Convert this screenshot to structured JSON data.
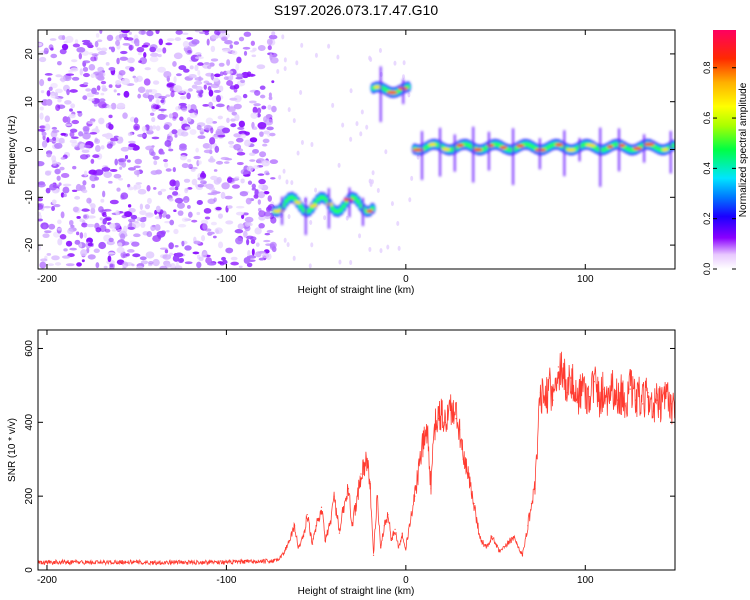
{
  "chart_data": [
    {
      "type": "heatmap",
      "title": "S197.2026.073.17.47.G10",
      "xlabel": "Height of straight line (km)",
      "ylabel": "Frequency (Hz)",
      "xlim": [
        -205,
        150
      ],
      "ylim": [
        -25,
        25
      ],
      "xticks": [
        -200,
        -100,
        0,
        100
      ],
      "yticks": [
        -20,
        -10,
        0,
        10,
        20
      ],
      "colorbar": {
        "label": "Normalized spectral amplitude",
        "range": [
          0,
          0.95
        ],
        "ticks": [
          0.0,
          0.2,
          0.4,
          0.6,
          0.8
        ]
      },
      "features": [
        {
          "name": "noise region",
          "x_range": [
            -205,
            -73
          ],
          "frequency_range": [
            -25,
            25
          ],
          "amplitude": "low"
        },
        {
          "name": "trace segment 1",
          "x_range": [
            -73,
            -18
          ],
          "frequency": -11.5,
          "amplitude": "high"
        },
        {
          "name": "trace segment 2",
          "x_range": [
            -18,
            2
          ],
          "frequency": 12.5,
          "amplitude": "high"
        },
        {
          "name": "trace segment 3",
          "x_range": [
            5,
            150
          ],
          "frequency": 0.5,
          "amplitude": "high"
        }
      ]
    },
    {
      "type": "line",
      "xlabel": "Height of straight line (km)",
      "ylabel": "SNR (10 * v/v)",
      "xlim": [
        -205,
        150
      ],
      "ylim": [
        0,
        650
      ],
      "xticks": [
        -200,
        -100,
        0,
        100
      ],
      "yticks": [
        0,
        200,
        400,
        600
      ],
      "series": [
        {
          "name": "SNR",
          "color": "#ff3b30",
          "x": [
            -205,
            -190,
            -180,
            -170,
            -160,
            -150,
            -140,
            -130,
            -120,
            -110,
            -100,
            -90,
            -80,
            -72,
            -68,
            -65,
            -62,
            -60,
            -57,
            -55,
            -52,
            -50,
            -47,
            -45,
            -42,
            -40,
            -37,
            -35,
            -32,
            -30,
            -27,
            -25,
            -22,
            -20,
            -18,
            -16,
            -14,
            -12,
            -10,
            -8,
            -6,
            -4,
            -2,
            0,
            2,
            5,
            8,
            10,
            12,
            14,
            16,
            18,
            20,
            22,
            25,
            28,
            30,
            32,
            35,
            38,
            40,
            42,
            45,
            48,
            50,
            52,
            55,
            58,
            60,
            62,
            65,
            68,
            70,
            72,
            75,
            78,
            80,
            82,
            85,
            88,
            90,
            92,
            95,
            98,
            100,
            102,
            105,
            108,
            110,
            112,
            115,
            118,
            120,
            122,
            125,
            128,
            130,
            132,
            135,
            138,
            140,
            142,
            145,
            148,
            150
          ],
          "values": [
            20,
            22,
            21,
            20,
            22,
            21,
            20,
            21,
            20,
            22,
            21,
            22,
            23,
            25,
            45,
            80,
            120,
            60,
            90,
            150,
            70,
            120,
            170,
            80,
            130,
            200,
            100,
            160,
            220,
            120,
            200,
            260,
            300,
            240,
            40,
            200,
            60,
            120,
            150,
            80,
            110,
            60,
            100,
            60,
            120,
            200,
            300,
            350,
            380,
            220,
            390,
            410,
            420,
            400,
            440,
            410,
            380,
            300,
            250,
            180,
            120,
            80,
            60,
            90,
            70,
            50,
            60,
            80,
            90,
            70,
            40,
            120,
            180,
            220,
            480,
            450,
            520,
            460,
            550,
            540,
            480,
            520,
            460,
            500,
            480,
            470,
            510,
            460,
            490,
            470,
            500,
            460,
            480,
            450,
            490,
            460,
            470,
            450,
            480,
            430,
            460,
            440,
            470,
            450,
            430
          ]
        }
      ]
    }
  ]
}
